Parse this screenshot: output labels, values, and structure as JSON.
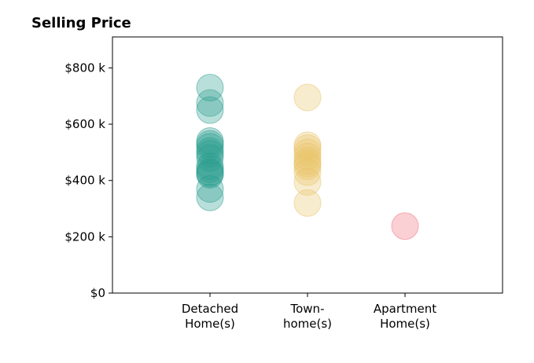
{
  "chart_data": {
    "type": "scatter",
    "title": "Selling Price",
    "xlabel": "",
    "ylabel": "",
    "categories": [
      [
        "Detached",
        "Home(s)"
      ],
      [
        "Town-",
        "home(s)"
      ],
      [
        "Apartment",
        "Home(s)"
      ]
    ],
    "ylim": [
      0,
      910000
    ],
    "yticks": [
      0,
      200000,
      400000,
      600000,
      800000
    ],
    "ytick_labels": [
      "$0",
      "$200 k",
      "$400 k",
      "$600 k",
      "$800 k"
    ],
    "grid": false,
    "legend": "none",
    "series": [
      {
        "category": 0,
        "color": "#2a9d8f",
        "values": [
          730000,
          675000,
          650000,
          540000,
          530000,
          520000,
          505000,
          495000,
          480000,
          450000,
          440000,
          430000,
          425000,
          420000,
          370000,
          340000
        ]
      },
      {
        "category": 1,
        "color": "#e9c46a",
        "values": [
          695000,
          525000,
          515000,
          500000,
          485000,
          470000,
          460000,
          450000,
          430000,
          395000,
          320000
        ]
      },
      {
        "category": 2,
        "color": "#ef6f7c",
        "values": [
          238000
        ]
      }
    ]
  }
}
